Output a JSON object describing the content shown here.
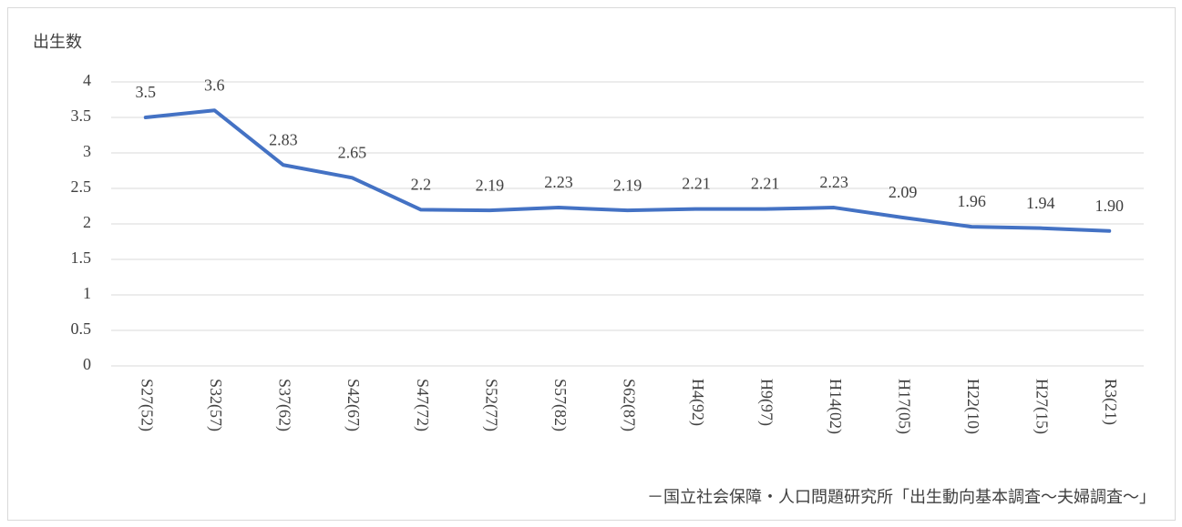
{
  "chart_data": {
    "type": "line",
    "ylabel": "出生数",
    "source": "－国立社会保障・人口問題研究所「出生動向基本調査～夫婦調査～」",
    "categories": [
      "S27(52)",
      "S32(57)",
      "S37(62)",
      "S42(67)",
      "S47(72)",
      "S52(77)",
      "S57(82)",
      "S62(87)",
      "H4(92)",
      "H9(97)",
      "H14(02)",
      "H17(05)",
      "H22(10)",
      "H27(15)",
      "R3(21)"
    ],
    "values": [
      3.5,
      3.6,
      2.83,
      2.65,
      2.2,
      2.19,
      2.23,
      2.19,
      2.21,
      2.21,
      2.23,
      2.09,
      1.96,
      1.94,
      1.9
    ],
    "value_labels": [
      "3.5",
      "3.6",
      "2.83",
      "2.65",
      "2.2",
      "2.19",
      "2.23",
      "2.19",
      "2.21",
      "2.21",
      "2.23",
      "2.09",
      "1.96",
      "1.94",
      "1.90"
    ],
    "color": "#4472c4",
    "ylim": [
      0,
      4
    ],
    "yticks": [
      0,
      0.5,
      1,
      1.5,
      2,
      2.5,
      3,
      3.5,
      4
    ],
    "grid": true
  }
}
